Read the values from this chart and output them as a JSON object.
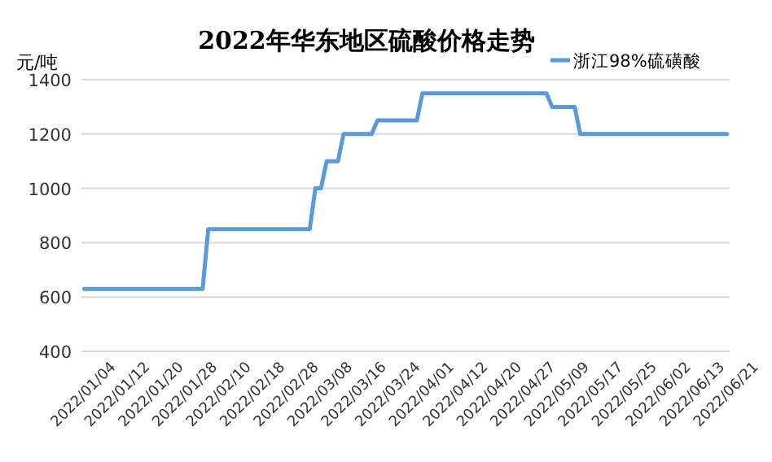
{
  "chart_data": {
    "type": "line",
    "title": "2022年华东地区硫酸价格走势",
    "ylabel": "元/吨",
    "categories": [
      "2022/01/04",
      null,
      null,
      null,
      null,
      null,
      "2022/01/12",
      null,
      null,
      null,
      null,
      null,
      "2022/01/20",
      null,
      null,
      null,
      null,
      null,
      "2022/01/28",
      null,
      null,
      null,
      null,
      null,
      "2022/02/10",
      null,
      null,
      null,
      null,
      null,
      "2022/02/18",
      null,
      null,
      null,
      null,
      null,
      "2022/02/28",
      null,
      null,
      null,
      null,
      null,
      "2022/03/08",
      null,
      null,
      null,
      null,
      null,
      "2022/03/16",
      null,
      null,
      null,
      null,
      null,
      "2022/03/24",
      null,
      null,
      null,
      null,
      null,
      "2022/04/01",
      null,
      null,
      null,
      null,
      null,
      "2022/04/12",
      null,
      null,
      null,
      null,
      null,
      "2022/04/20",
      null,
      null,
      null,
      null,
      null,
      "2022/04/27",
      null,
      null,
      null,
      null,
      null,
      "2022/05/09",
      null,
      null,
      null,
      null,
      null,
      "2022/05/17",
      null,
      null,
      null,
      null,
      null,
      "2022/05/25",
      null,
      null,
      null,
      null,
      null,
      "2022/06/02",
      null,
      null,
      null,
      null,
      null,
      "2022/06/13",
      null,
      null,
      null,
      null,
      null,
      "2022/06/21"
    ],
    "series": [
      {
        "name": "浙江98%硫磺酸",
        "color": "#5b9bd5",
        "values": [
          630,
          630,
          630,
          630,
          630,
          630,
          630,
          630,
          630,
          630,
          630,
          630,
          630,
          630,
          630,
          630,
          630,
          630,
          630,
          630,
          630,
          630,
          850,
          850,
          850,
          850,
          850,
          850,
          850,
          850,
          850,
          850,
          850,
          850,
          850,
          850,
          850,
          850,
          850,
          850,
          850,
          1000,
          1000,
          1100,
          1100,
          1100,
          1200,
          1200,
          1200,
          1200,
          1200,
          1200,
          1250,
          1250,
          1250,
          1250,
          1250,
          1250,
          1250,
          1250,
          1350,
          1350,
          1350,
          1350,
          1350,
          1350,
          1350,
          1350,
          1350,
          1350,
          1350,
          1350,
          1350,
          1350,
          1350,
          1350,
          1350,
          1350,
          1350,
          1350,
          1350,
          1350,
          1350,
          1300,
          1300,
          1300,
          1300,
          1300,
          1200,
          1200,
          1200,
          1200,
          1200,
          1200,
          1200,
          1200,
          1200,
          1200,
          1200,
          1200,
          1200,
          1200,
          1200,
          1200,
          1200,
          1200,
          1200,
          1200,
          1200,
          1200,
          1200,
          1200,
          1200,
          1200,
          1200
        ]
      }
    ],
    "ylim": [
      400,
      1400
    ],
    "yticks": [
      400,
      600,
      800,
      1000,
      1200,
      1400
    ],
    "grid": "y",
    "legend": "top right"
  }
}
